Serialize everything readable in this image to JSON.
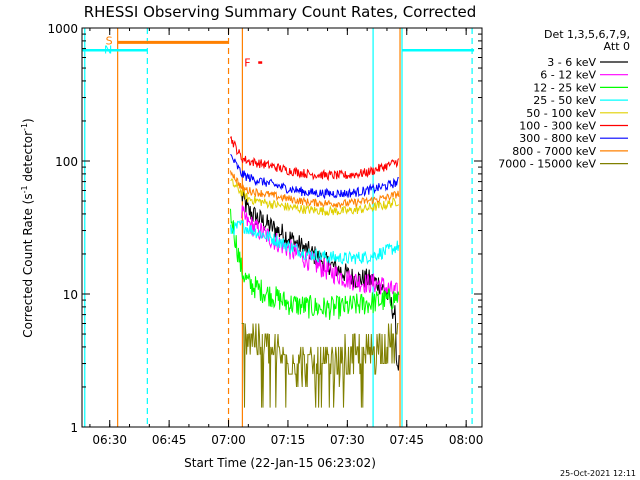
{
  "chart_data": {
    "type": "line",
    "title": "RHESSI Observing Summary Count Rates, Corrected",
    "xlabel": "Start Time (22-Jan-15 06:23:02)",
    "ylabel_main": "Corrected Count Rate (s",
    "ylabel_sup1": "-1",
    "ylabel_mid": " detector",
    "ylabel_sup2": "-1",
    "ylabel_end": ")",
    "yscale": "log",
    "ylim": [
      1,
      1000
    ],
    "xlim_minutes": [
      383.0,
      484.0
    ],
    "x_ticks": [
      {
        "label": "06:30",
        "minutes": 390
      },
      {
        "label": "06:45",
        "minutes": 405
      },
      {
        "label": "07:00",
        "minutes": 420
      },
      {
        "label": "07:15",
        "minutes": 435
      },
      {
        "label": "07:30",
        "minutes": 450
      },
      {
        "label": "07:45",
        "minutes": 465
      },
      {
        "label": "08:00",
        "minutes": 480
      }
    ],
    "y_ticks": [
      {
        "label": "1",
        "value": 1
      },
      {
        "label": "10",
        "value": 10
      },
      {
        "label": "100",
        "value": 100
      },
      {
        "label": "1000",
        "value": 1000
      }
    ],
    "legend_header": [
      "Det 1,3,5,6,7,9,",
      "Att 0"
    ],
    "legend_placement": "right",
    "timestamp": "25-Oct-2021 12:11",
    "flags": [
      {
        "label": "S",
        "color": "#ff8000",
        "start": 392.0,
        "end": 420.0,
        "level": 780
      },
      {
        "label": "N",
        "color": "#00ffff",
        "start": 383.0,
        "end": 399.5,
        "level": 680
      },
      {
        "label": "N",
        "color": "#00ffff",
        "start": 463.8,
        "end": 482.0,
        "level": 680
      },
      {
        "label": "F",
        "color": "#ff0000",
        "start": 427.5,
        "end": 428.5,
        "level": 550
      }
    ],
    "vlines": [
      {
        "minutes": 383.7,
        "color": "#00ffff",
        "style": "solid"
      },
      {
        "minutes": 392.0,
        "color": "#ff8000",
        "style": "solid"
      },
      {
        "minutes": 399.5,
        "color": "#00ffff",
        "style": "dashed"
      },
      {
        "minutes": 420.0,
        "color": "#ff8000",
        "style": "dashed"
      },
      {
        "minutes": 423.5,
        "color": "#ff8000",
        "style": "solid"
      },
      {
        "minutes": 456.5,
        "color": "#00ffff",
        "style": "solid"
      },
      {
        "minutes": 463.8,
        "color": "#00ffff",
        "style": "solid"
      },
      {
        "minutes": 463.3,
        "color": "#ff8000",
        "style": "solid"
      },
      {
        "minutes": 481.5,
        "color": "#00ffff",
        "style": "dashed"
      }
    ],
    "series": [
      {
        "name": "3 - 6 keV",
        "color": "#000000",
        "jitter": 0.08,
        "points": [
          [
            423.3,
            55
          ],
          [
            425,
            42
          ],
          [
            430,
            33
          ],
          [
            435,
            27
          ],
          [
            440,
            21
          ],
          [
            445,
            17
          ],
          [
            450,
            14
          ],
          [
            452,
            13
          ],
          [
            455,
            13
          ],
          [
            458,
            12
          ],
          [
            460,
            10
          ],
          [
            462,
            7
          ],
          [
            462.5,
            3
          ],
          [
            463.2,
            3
          ]
        ]
      },
      {
        "name": "6 - 12 keV",
        "color": "#ff00ff",
        "jitter": 0.08,
        "points": [
          [
            423.3,
            40
          ],
          [
            425,
            34
          ],
          [
            430,
            27
          ],
          [
            435,
            22
          ],
          [
            440,
            18
          ],
          [
            445,
            15
          ],
          [
            450,
            13
          ],
          [
            455,
            12
          ],
          [
            458,
            12
          ],
          [
            460,
            11
          ],
          [
            463,
            10
          ]
        ]
      },
      {
        "name": "12 - 25 keV",
        "color": "#00ff00",
        "jitter": 0.09,
        "points": [
          [
            420.5,
            40
          ],
          [
            423.3,
            15
          ],
          [
            425,
            12
          ],
          [
            430,
            10
          ],
          [
            435,
            8.5
          ],
          [
            440,
            8
          ],
          [
            445,
            7.8
          ],
          [
            450,
            8
          ],
          [
            455,
            8.5
          ],
          [
            460,
            9
          ],
          [
            463,
            9.5
          ]
        ]
      },
      {
        "name": "25 - 50 keV",
        "color": "#00ffff",
        "jitter": 0.05,
        "points": [
          [
            420.5,
            30
          ],
          [
            423.3,
            33
          ],
          [
            425,
            31
          ],
          [
            430,
            27
          ],
          [
            435,
            23
          ],
          [
            440,
            20
          ],
          [
            445,
            19
          ],
          [
            450,
            18.5
          ],
          [
            455,
            19
          ],
          [
            460,
            21
          ],
          [
            463,
            23
          ]
        ]
      },
      {
        "name": "50 - 100 keV",
        "color": "#e0d000",
        "jitter": 0.035,
        "points": [
          [
            420.5,
            70
          ],
          [
            423.3,
            58
          ],
          [
            425,
            52
          ],
          [
            430,
            48
          ],
          [
            435,
            45
          ],
          [
            440,
            43
          ],
          [
            445,
            42
          ],
          [
            450,
            42
          ],
          [
            455,
            44
          ],
          [
            460,
            47
          ],
          [
            463,
            50
          ]
        ]
      },
      {
        "name": "100 - 300 keV",
        "color": "#ff0000",
        "jitter": 0.035,
        "points": [
          [
            420.5,
            150
          ],
          [
            423.3,
            105
          ],
          [
            425,
            100
          ],
          [
            430,
            93
          ],
          [
            435,
            85
          ],
          [
            440,
            80
          ],
          [
            445,
            78
          ],
          [
            450,
            78
          ],
          [
            455,
            82
          ],
          [
            460,
            92
          ],
          [
            463,
            100
          ]
        ]
      },
      {
        "name": "300 - 800 keV",
        "color": "#0000ff",
        "jitter": 0.035,
        "points": [
          [
            420.5,
            110
          ],
          [
            423.3,
            80
          ],
          [
            425,
            75
          ],
          [
            430,
            68
          ],
          [
            435,
            62
          ],
          [
            440,
            58
          ],
          [
            445,
            57
          ],
          [
            450,
            57
          ],
          [
            455,
            60
          ],
          [
            460,
            65
          ],
          [
            463,
            70
          ]
        ]
      },
      {
        "name": "800 - 7000 keV",
        "color": "#ff8000",
        "jitter": 0.03,
        "points": [
          [
            420.5,
            85
          ],
          [
            423.3,
            63
          ],
          [
            425,
            60
          ],
          [
            430,
            56
          ],
          [
            435,
            52
          ],
          [
            440,
            49
          ],
          [
            445,
            48
          ],
          [
            450,
            48
          ],
          [
            455,
            50
          ],
          [
            460,
            53
          ],
          [
            463,
            57
          ]
        ]
      },
      {
        "name": "7000 - 15000 keV",
        "color": "#808000",
        "jitter": 0.16,
        "points": [
          [
            423.3,
            6
          ],
          [
            425,
            5
          ],
          [
            430,
            4
          ],
          [
            435,
            3.2
          ],
          [
            440,
            2.8
          ],
          [
            445,
            2.9
          ],
          [
            450,
            3.2
          ],
          [
            455,
            3.6
          ],
          [
            460,
            4.1
          ],
          [
            463,
            4.3
          ]
        ]
      }
    ]
  }
}
